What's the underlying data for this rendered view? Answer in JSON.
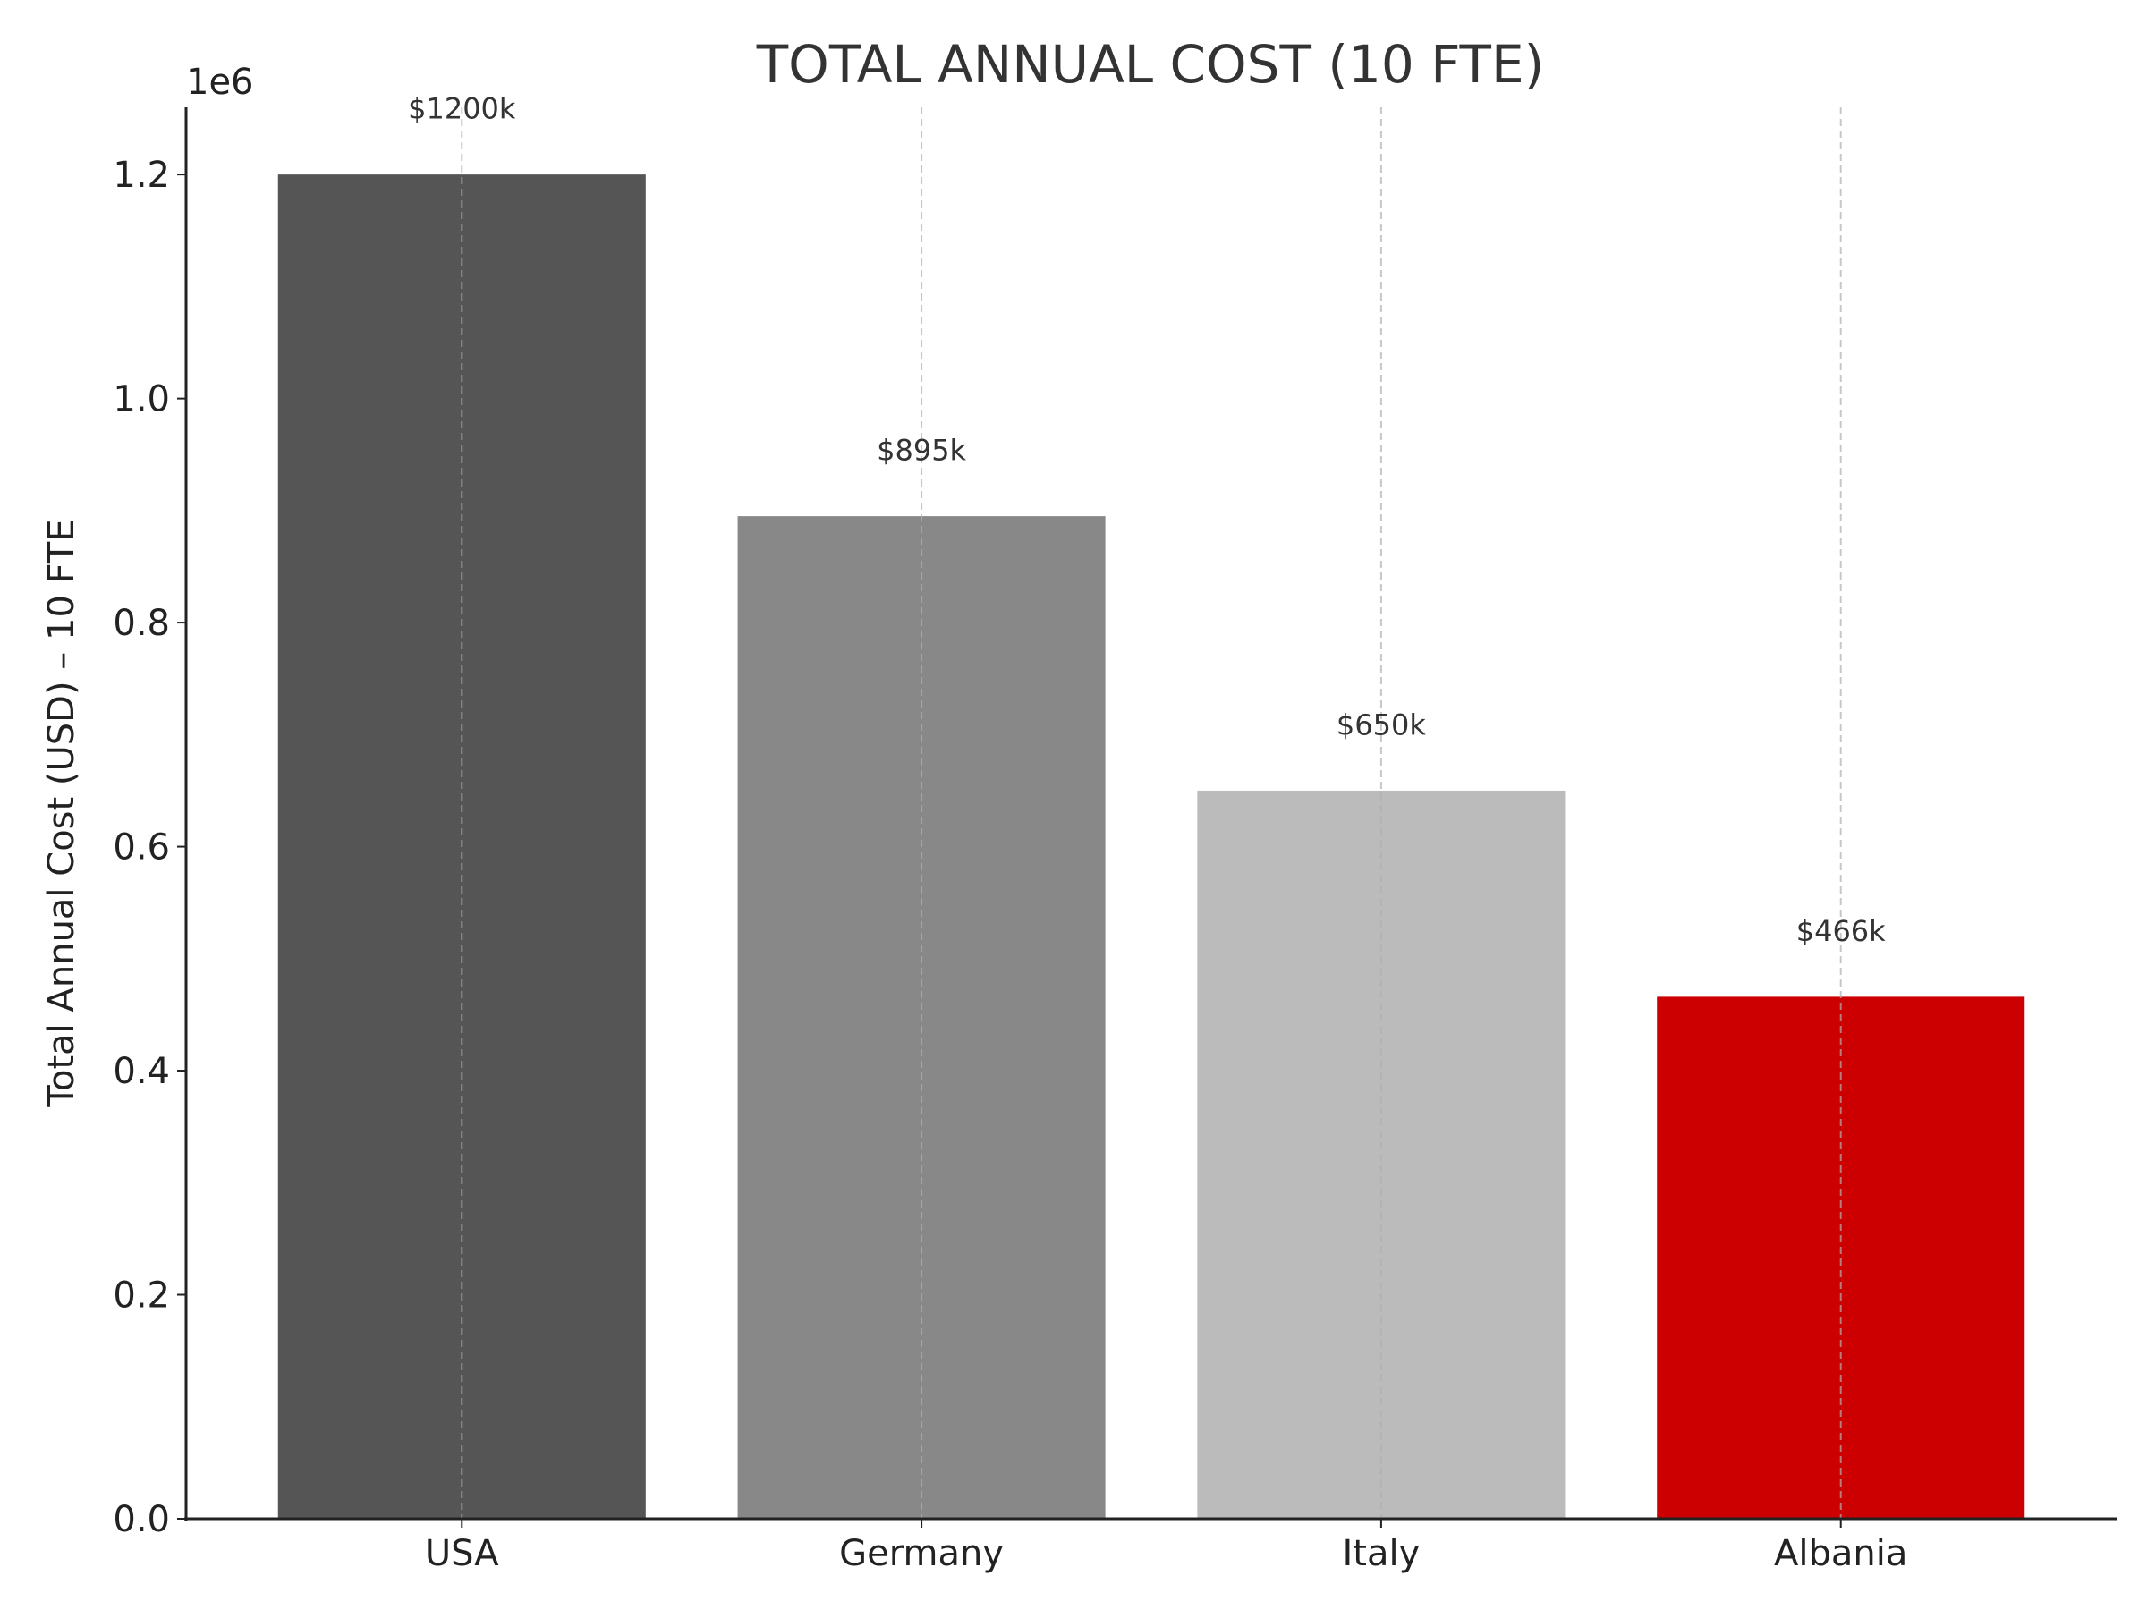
{
  "chart_data": {
    "type": "bar",
    "title": "TOTAL ANNUAL COST (10 FTE)",
    "xlabel": "",
    "ylabel": "Total Annual Cost (USD) – 10 FTE",
    "y_offset_label": "1e6",
    "categories": [
      "USA",
      "Germany",
      "Italy",
      "Albania"
    ],
    "values": [
      1200000,
      895000,
      650000,
      466000
    ],
    "data_labels": [
      "$1200k",
      "$895k",
      "$650k",
      "$466k"
    ],
    "colors": [
      "#555555",
      "#888888",
      "#bbbbbb",
      "#cc0000"
    ],
    "ylim": [
      0,
      1260000
    ],
    "yticks": [
      0,
      200000,
      400000,
      600000,
      800000,
      1000000,
      1200000
    ],
    "ytick_labels": [
      "0.0",
      "0.2",
      "0.4",
      "0.6",
      "0.8",
      "1.0",
      "1.2"
    ],
    "grid": "vertical dashed lines at x categories",
    "legend": "none"
  }
}
